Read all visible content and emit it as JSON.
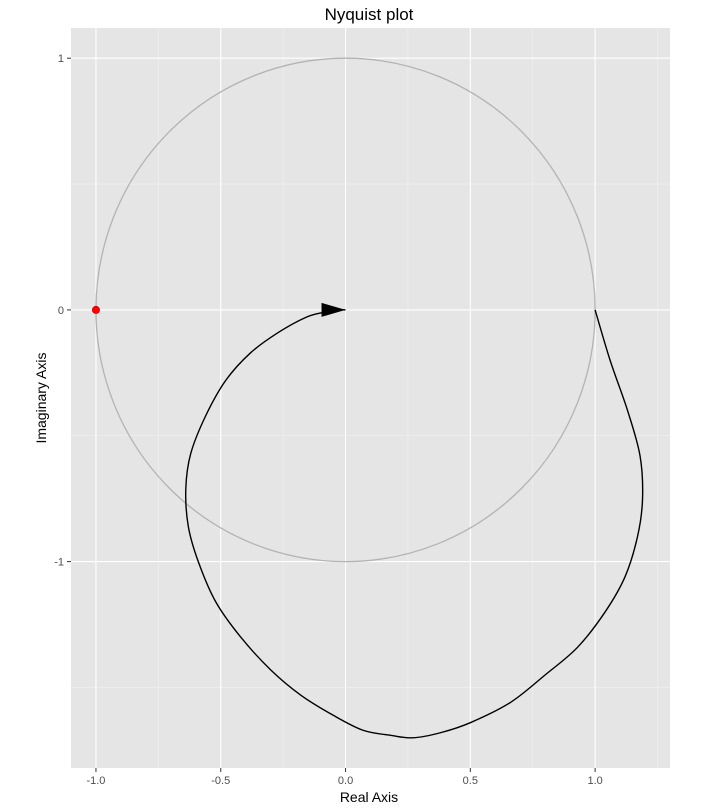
{
  "chart_data": {
    "type": "line",
    "title": "Nyquist plot",
    "xlabel": "Real Axis",
    "ylabel": "Imaginary Axis",
    "xlim": [
      -1.1,
      1.3
    ],
    "ylim": [
      -1.82,
      1.12
    ],
    "x_ticks": [
      -1.0,
      -0.5,
      0.0,
      0.5,
      1.0
    ],
    "x_tick_labels": [
      "-1.0",
      "-0.5",
      "0.0",
      "0.5",
      "1.0"
    ],
    "y_ticks": [
      1,
      0,
      -1
    ],
    "y_tick_labels": [
      "1",
      "0",
      "-1"
    ],
    "grid": true,
    "legend": "none",
    "series": [
      {
        "type": "unit-circle",
        "center": [
          0,
          0
        ],
        "radius": 1,
        "color": "#b3b3b3"
      },
      {
        "type": "nyquist-curve",
        "color": "#000000",
        "x": [
          1.0,
          1.06,
          1.13,
          1.18,
          1.19,
          1.17,
          1.12,
          1.04,
          0.93,
          0.8,
          0.66,
          0.5,
          0.38,
          0.27,
          0.18,
          0.07,
          -0.05,
          -0.18,
          -0.3,
          -0.42,
          -0.52,
          -0.59,
          -0.63,
          -0.64,
          -0.62,
          -0.56,
          -0.48,
          -0.38,
          -0.27,
          -0.16,
          -0.09,
          -0.03,
          0.0
        ],
        "y": [
          0.0,
          -0.2,
          -0.4,
          -0.58,
          -0.75,
          -0.9,
          -1.06,
          -1.2,
          -1.34,
          -1.45,
          -1.56,
          -1.64,
          -1.68,
          -1.7,
          -1.69,
          -1.67,
          -1.61,
          -1.53,
          -1.43,
          -1.3,
          -1.16,
          -1.0,
          -0.86,
          -0.71,
          -0.57,
          -0.42,
          -0.28,
          -0.17,
          -0.09,
          -0.03,
          -0.01,
          0.0,
          0.0
        ]
      }
    ],
    "arrow": {
      "x": 0.0,
      "y": 0.0,
      "direction": "right",
      "color": "#000000"
    },
    "critical_point": {
      "x": -1,
      "y": 0,
      "color": "#ff0000"
    }
  }
}
